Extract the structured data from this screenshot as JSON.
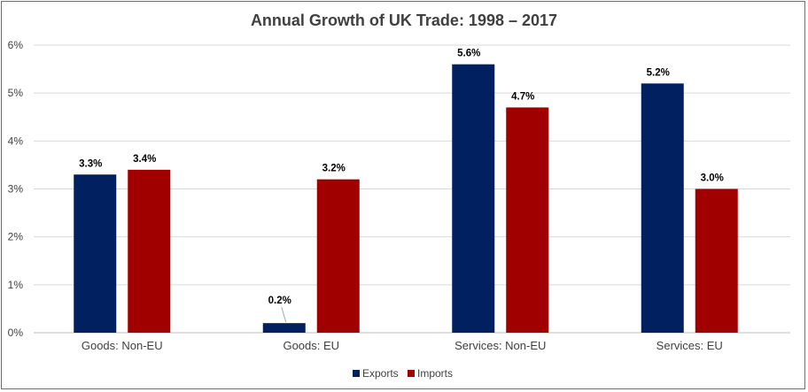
{
  "chart_data": {
    "type": "bar",
    "title": "Annual Growth of UK Trade: 1998 – 2017",
    "categories": [
      "Goods: Non-EU",
      "Goods: EU",
      "Services: Non-EU",
      "Services: EU"
    ],
    "series": [
      {
        "name": "Exports",
        "color": "#002060",
        "values": [
          3.3,
          0.2,
          5.6,
          5.2
        ],
        "labels": [
          "3.3%",
          "0.2%",
          "5.6%",
          "5.2%"
        ]
      },
      {
        "name": "Imports",
        "color": "#A00000",
        "values": [
          3.4,
          3.2,
          4.7,
          3.0
        ],
        "labels": [
          "3.4%",
          "3.2%",
          "4.7%",
          "3.0%"
        ]
      }
    ],
    "yticks": [
      "0%",
      "1%",
      "2%",
      "3%",
      "4%",
      "5%",
      "6%"
    ],
    "ylim": [
      0,
      6
    ],
    "grid": true,
    "legend_position": "bottom"
  }
}
